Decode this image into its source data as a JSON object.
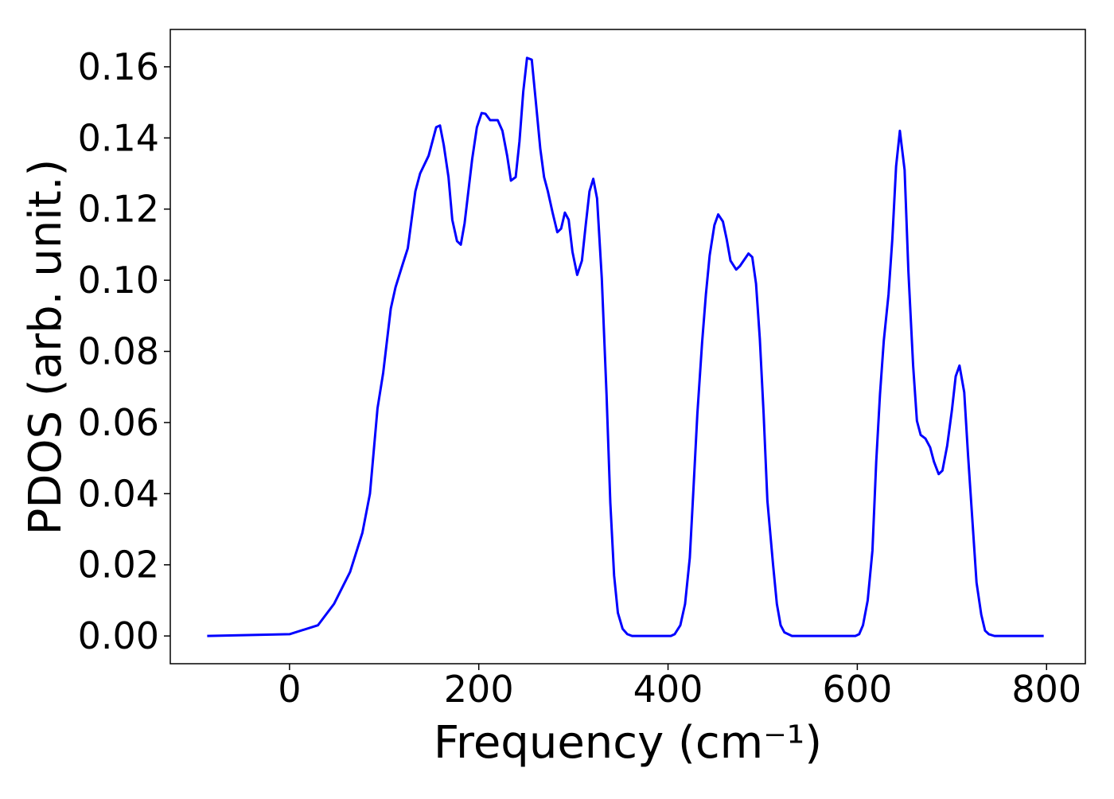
{
  "chart_data": {
    "type": "line",
    "x_label": "Frequency (cm⁻¹)",
    "y_label": "PDOS (arb. unit.)",
    "x": [
      -87,
      0,
      30,
      47,
      64,
      77,
      85,
      93,
      99,
      107,
      112,
      119,
      125,
      133,
      138,
      147,
      155,
      159,
      163,
      168,
      172,
      177,
      181,
      185,
      193,
      198,
      203,
      207,
      212,
      220,
      225,
      230,
      234,
      239,
      243,
      247,
      251,
      256,
      260,
      265,
      269,
      273,
      278,
      283,
      287,
      291,
      295,
      299,
      304,
      309,
      313,
      317,
      321,
      325,
      330,
      335,
      339,
      343,
      347,
      352,
      357,
      362,
      403,
      407,
      413,
      418,
      423,
      427,
      431,
      436,
      440,
      444,
      449,
      453,
      458,
      462,
      466,
      472,
      476,
      485,
      489,
      493,
      497,
      501,
      505,
      511,
      515,
      519,
      523,
      531,
      598,
      602,
      606,
      611,
      616,
      620,
      624,
      628,
      633,
      637,
      641,
      645,
      650,
      654,
      659,
      663,
      667,
      672,
      677,
      681,
      686,
      690,
      695,
      700,
      704,
      708,
      713,
      717,
      722,
      726,
      731,
      735,
      739,
      745,
      797
    ],
    "series": [
      {
        "name": "PDOS",
        "color": "#0000ff",
        "values": [
          0,
          0.0005,
          0.003,
          0.009,
          0.018,
          0.029,
          0.04,
          0.064,
          0.074,
          0.092,
          0.098,
          0.104,
          0.109,
          0.125,
          0.13,
          0.135,
          0.143,
          0.1435,
          0.138,
          0.129,
          0.117,
          0.111,
          0.11,
          0.116,
          0.134,
          0.143,
          0.147,
          0.1468,
          0.145,
          0.145,
          0.142,
          0.135,
          0.128,
          0.129,
          0.139,
          0.153,
          0.1625,
          0.162,
          0.151,
          0.137,
          0.129,
          0.125,
          0.119,
          0.1135,
          0.1145,
          0.119,
          0.117,
          0.108,
          0.1015,
          0.1055,
          0.1155,
          0.125,
          0.1285,
          0.123,
          0.1005,
          0.068,
          0.0375,
          0.017,
          0.0065,
          0.002,
          0.0005,
          0,
          0,
          0.0005,
          0.003,
          0.009,
          0.022,
          0.042,
          0.0625,
          0.0825,
          0.096,
          0.107,
          0.1155,
          0.1185,
          0.1165,
          0.1115,
          0.1055,
          0.103,
          0.104,
          0.1075,
          0.1065,
          0.099,
          0.0835,
          0.0625,
          0.038,
          0.02,
          0.009,
          0.003,
          0.001,
          0,
          0,
          0.0005,
          0.003,
          0.01,
          0.024,
          0.049,
          0.068,
          0.083,
          0.096,
          0.1115,
          0.132,
          0.142,
          0.131,
          0.1025,
          0.076,
          0.0605,
          0.0565,
          0.0555,
          0.053,
          0.049,
          0.0455,
          0.0465,
          0.0535,
          0.0635,
          0.073,
          0.076,
          0.0685,
          0.051,
          0.031,
          0.015,
          0.006,
          0.0015,
          0.0005,
          0,
          0
        ]
      }
    ],
    "xlim": [
      -126,
      841
    ],
    "ylim": [
      -0.0078,
      0.1705
    ],
    "xticks": [
      0,
      200,
      400,
      600,
      800
    ],
    "yticks": [
      {
        "value": 0,
        "label": "0.00"
      },
      0.02,
      0.04,
      0.06,
      0.08,
      {
        "value": 0.1,
        "label": "0.10"
      },
      0.12,
      0.14,
      0.16
    ],
    "grid": false
  }
}
